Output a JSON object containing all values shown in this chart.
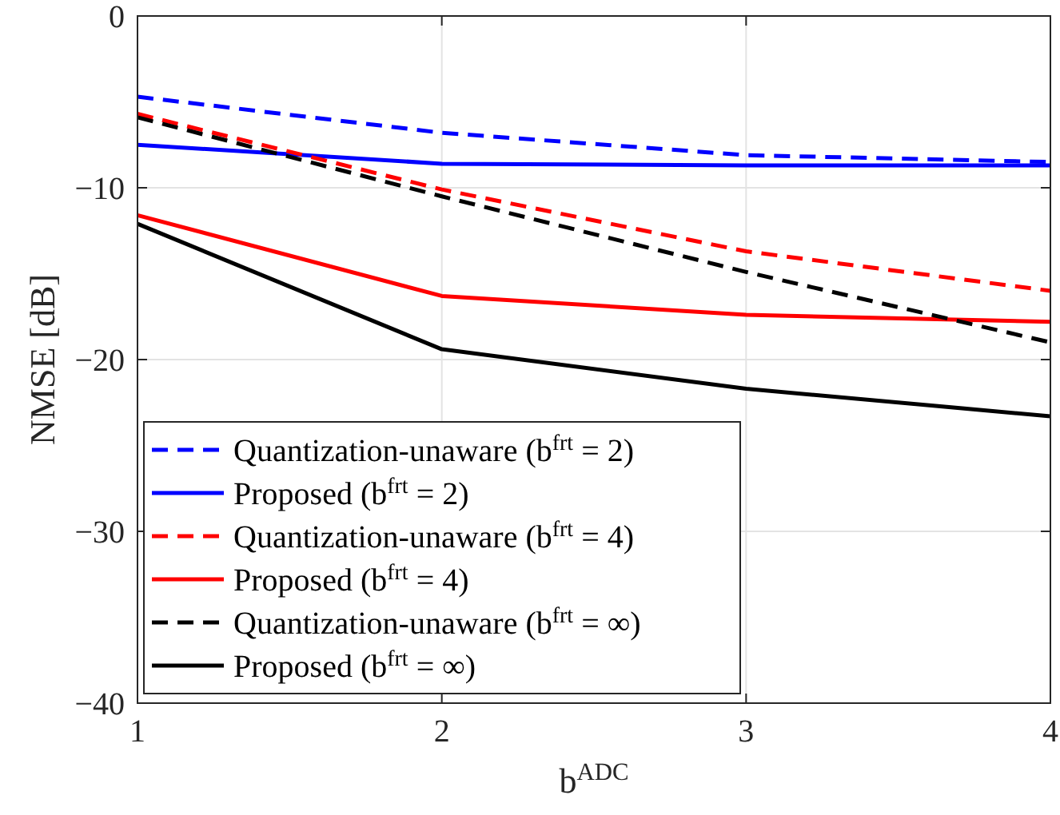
{
  "chart_data": {
    "type": "line",
    "xlabel": "b$^{ADC}$",
    "ylabel": "NMSE [dB]",
    "x": [
      1,
      2,
      3,
      4
    ],
    "xlim": [
      1,
      4
    ],
    "xticks": [
      1,
      2,
      3,
      4
    ],
    "ylim": [
      -40,
      0
    ],
    "yticks": [
      -40,
      -30,
      -20,
      -10,
      0
    ],
    "grid": true,
    "legend": "bottom left",
    "marker": "none",
    "series": [
      {
        "name": "Quantization-unaware (b$^{frt}$ = 2)",
        "color": "#0000ff",
        "line_style": "dashed",
        "values": [
          -4.7,
          -6.8,
          -8.1,
          -8.5
        ]
      },
      {
        "name": "Proposed (b$^{frt}$ = 2)",
        "color": "#0000ff",
        "line_style": "solid",
        "values": [
          -7.5,
          -8.6,
          -8.7,
          -8.7
        ]
      },
      {
        "name": "Quantization-unaware (b$^{frt}$ = 4)",
        "color": "#ff0000",
        "line_style": "dashed",
        "values": [
          -5.7,
          -10.1,
          -13.7,
          -16.0
        ]
      },
      {
        "name": "Proposed (b$^{frt}$ = 4)",
        "color": "#ff0000",
        "line_style": "solid",
        "values": [
          -11.6,
          -16.3,
          -17.4,
          -17.8
        ]
      },
      {
        "name": "Quantization-unaware (b$^{frt}$ = ∞)",
        "color": "#000000",
        "line_style": "dashed",
        "values": [
          -5.9,
          -10.5,
          -14.9,
          -19.0
        ]
      },
      {
        "name": "Proposed (b$^{frt}$ = ∞)",
        "color": "#000000",
        "line_style": "solid",
        "values": [
          -12.1,
          -19.4,
          -21.7,
          -23.3
        ]
      }
    ]
  }
}
